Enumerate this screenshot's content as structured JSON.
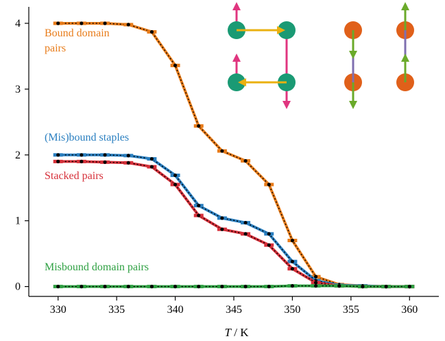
{
  "chart_data": {
    "type": "line",
    "title": "",
    "xlabel_italic": "T",
    "xlabel_unit": " / K",
    "ylabel": "",
    "xlim": [
      327.5,
      362.5
    ],
    "ylim": [
      -0.15,
      4.25
    ],
    "xticks": [
      330,
      335,
      340,
      345,
      350,
      355,
      360
    ],
    "yticks": [
      0,
      1,
      2,
      3,
      4
    ],
    "grid": false,
    "legend": "none",
    "x": [
      330,
      332,
      334,
      336,
      338,
      340,
      342,
      344,
      346,
      348,
      350,
      352,
      354,
      356,
      358,
      360
    ],
    "series": [
      {
        "name": "Bound domain\npairs",
        "label_lines": [
          "Bound domain",
          "pairs"
        ],
        "color": "#e87c1a",
        "values": [
          4.0,
          4.0,
          4.0,
          3.98,
          3.87,
          3.36,
          2.44,
          2.06,
          1.91,
          1.55,
          0.7,
          0.15,
          0.03,
          0.01,
          0.0,
          0.0
        ]
      },
      {
        "name": "(Mis)bound staples",
        "label_lines": [
          "(Mis)bound staples"
        ],
        "color": "#2a7fc0",
        "values": [
          2.0,
          2.0,
          2.0,
          1.99,
          1.94,
          1.69,
          1.23,
          1.04,
          0.97,
          0.8,
          0.38,
          0.09,
          0.02,
          0.01,
          0.0,
          0.0
        ]
      },
      {
        "name": "Stacked pairs",
        "label_lines": [
          "Stacked pairs"
        ],
        "color": "#d6303a",
        "values": [
          1.9,
          1.9,
          1.89,
          1.88,
          1.82,
          1.55,
          1.08,
          0.87,
          0.8,
          0.63,
          0.27,
          0.06,
          0.01,
          0.0,
          0.0,
          0.0
        ]
      },
      {
        "name": "Misbound domain pairs",
        "label_lines": [
          "Misbound domain pairs"
        ],
        "color": "#2ea042",
        "values": [
          0.0,
          0.0,
          0.0,
          0.0,
          0.0,
          0.0,
          0.0,
          0.0,
          0.0,
          0.0,
          0.01,
          0.01,
          0.01,
          0.0,
          0.0,
          0.0
        ]
      }
    ],
    "inset_colors": {
      "teal_domain": "#1a9a74",
      "orange_domain": "#e0601a",
      "pink_arrow": "#e0357f",
      "yellow_arrow": "#eab010",
      "green_arrow": "#6aaa2a",
      "purple_link": "#7f6fb0"
    }
  }
}
